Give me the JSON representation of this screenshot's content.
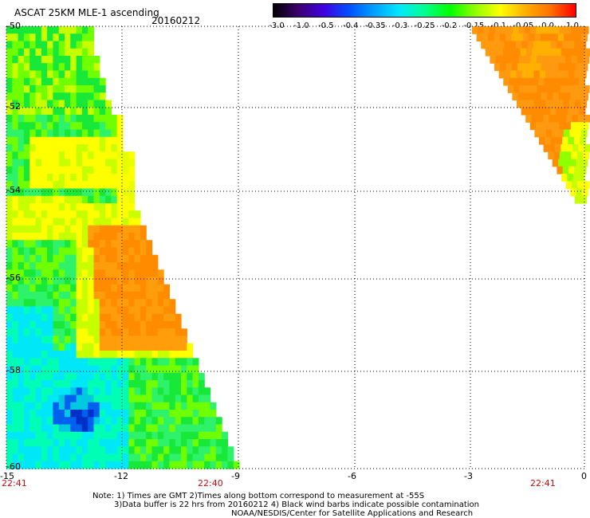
{
  "header": {
    "title": "ASCAT 25KM MLE-1 ascending",
    "date": "20160212"
  },
  "colorbar": {
    "ticks": [
      "-3.0",
      "-1.0",
      "-0.5",
      "-0.4",
      "-0.35",
      "-0.3",
      "-0.25",
      "-0.2",
      "-0.15",
      "-0.1",
      "-0.05",
      "0.0",
      "1.0"
    ],
    "colors": [
      "#000000",
      "#3c0070",
      "#4000e0",
      "#0050ff",
      "#00a0ff",
      "#00e8ff",
      "#00ff90",
      "#00ff00",
      "#90ff00",
      "#ffff00",
      "#ffb000",
      "#ff7000",
      "#ff0000"
    ]
  },
  "axes": {
    "lon_labels": [
      "-15",
      "-12",
      "-9",
      "-6",
      "-3",
      "0"
    ],
    "lat_labels": [
      "-50",
      "-52",
      "-54",
      "-56",
      "-58",
      "-60"
    ]
  },
  "times": {
    "left": "22:41",
    "middle": "22:40",
    "right": "22:41"
  },
  "notes": {
    "line1": "Note: 1) Times are GMT 2)Times along bottom correspond to measurement at -55S",
    "line2": "3)Data buffer is 22 hrs from 20160212 4) Black wind barbs indicate possible contamination",
    "line3": "NOAA/NESDIS/Center for Satellite Applications and Research"
  }
}
